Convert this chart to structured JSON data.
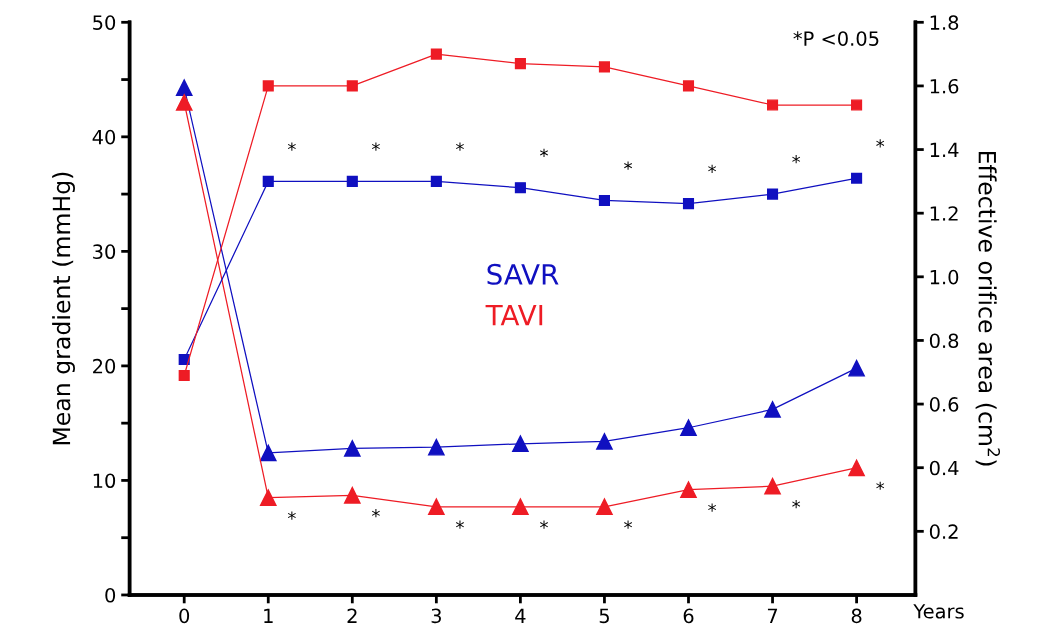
{
  "chart_data": {
    "type": "line",
    "xlabel": "Years",
    "ylabel": "Mean gradient (mmHg)",
    "y2label": "Effective orifice area (cm$^{2}$)",
    "x": [
      0,
      1,
      2,
      3,
      4,
      5,
      6,
      7,
      8
    ],
    "xlim": [
      -0.65,
      8.7
    ],
    "xticks": [
      0,
      1,
      2,
      3,
      4,
      5,
      6,
      7,
      8
    ],
    "ylim": [
      0,
      50
    ],
    "yticks": [
      0,
      {
        "value": 5,
        "label": null
      },
      10,
      {
        "value": 15,
        "label": null
      },
      20,
      {
        "value": 25,
        "label": null
      },
      30,
      {
        "value": 35,
        "label": null
      },
      40,
      {
        "value": 45,
        "label": null
      },
      50
    ],
    "y2lim": [
      0,
      1.8
    ],
    "y2ticks": [
      0.2,
      0.4,
      0.6,
      0.8,
      {
        "value": 1.0,
        "label": "1.0"
      },
      1.2,
      1.4,
      1.6,
      1.8
    ],
    "series": [
      {
        "name": "SAVR",
        "color": "#1010c0",
        "marker": "triangle",
        "values": [
          44.3,
          12.4,
          12.8,
          12.9,
          13.2,
          13.4,
          14.6,
          16.2,
          19.8
        ]
      },
      {
        "name": "TAVI",
        "color": "#ee1c25",
        "marker": "triangle",
        "values": [
          43.0,
          8.5,
          8.7,
          7.7,
          7.7,
          7.7,
          9.2,
          9.5,
          11.1
        ]
      },
      {
        "color": "#1010c0",
        "marker": "square",
        "axis": "y2",
        "values": [
          0.74,
          1.3,
          1.3,
          1.3,
          1.28,
          1.24,
          1.23,
          1.26,
          1.31
        ]
      },
      {
        "color": "#ee1c25",
        "marker": "square",
        "axis": "y2",
        "values": [
          0.69,
          1.6,
          1.6,
          1.7,
          1.67,
          1.66,
          1.6,
          1.54,
          1.54
        ]
      }
    ],
    "line_style": "solid",
    "grid": false,
    "legend": "center",
    "annotations": [
      "*P <0.05",
      "*",
      "*",
      "*",
      "*",
      "*",
      "*",
      "*",
      "*",
      "*",
      "*",
      "*",
      "*",
      "*",
      "*",
      "*",
      "*"
    ]
  }
}
